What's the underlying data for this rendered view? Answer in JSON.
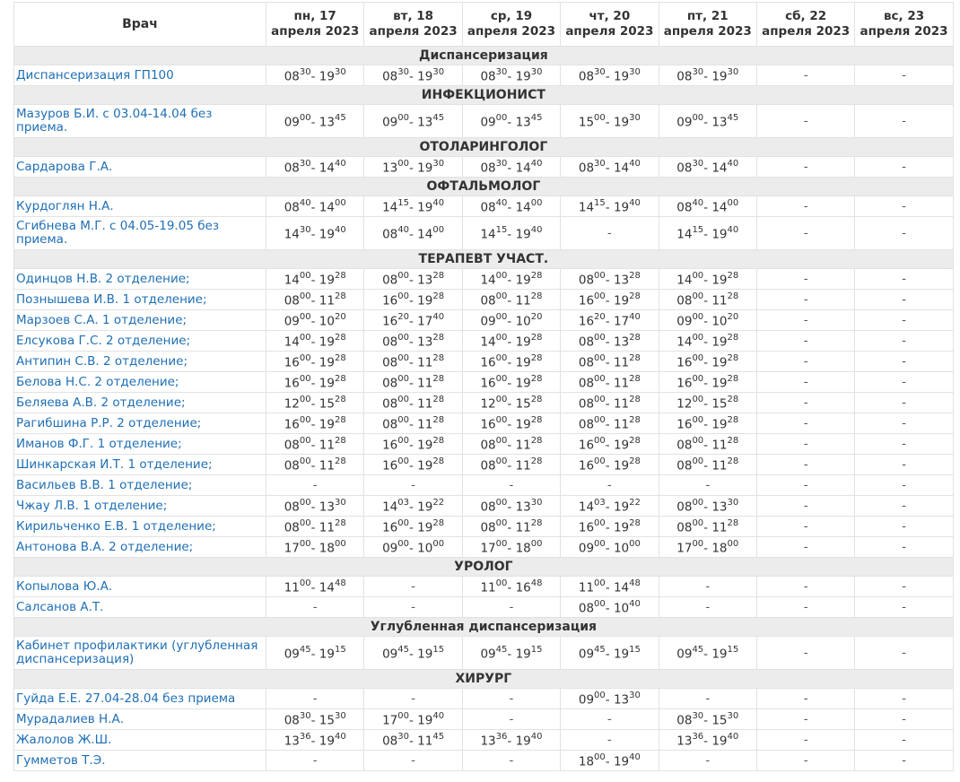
{
  "header": {
    "doctor": "Врач",
    "days": [
      {
        "l1": "пн, 17",
        "l2": "апреля 2023"
      },
      {
        "l1": "вт, 18",
        "l2": "апреля 2023"
      },
      {
        "l1": "ср, 19",
        "l2": "апреля 2023"
      },
      {
        "l1": "чт, 20",
        "l2": "апреля 2023"
      },
      {
        "l1": "пт, 21",
        "l2": "апреля 2023"
      },
      {
        "l1": "сб, 22",
        "l2": "апреля 2023"
      },
      {
        "l1": "вс, 23",
        "l2": "апреля 2023"
      }
    ]
  },
  "sections": [
    {
      "title": "Диспансеризация",
      "rows": [
        {
          "name": "Диспансеризация ГП100",
          "slots": [
            "08:30-19:30",
            "08:30-19:30",
            "08:30-19:30",
            "08:30-19:30",
            "08:30-19:30",
            "-",
            "-"
          ]
        }
      ]
    },
    {
      "title": "ИНФЕКЦИОНИСТ",
      "rows": [
        {
          "name": "Мазуров Б.И. с 03.04-14.04 без приема.",
          "tall": true,
          "slots": [
            "09:00-13:45",
            "09:00-13:45",
            "09:00-13:45",
            "15:00-19:30",
            "09:00-13:45",
            "-",
            "-"
          ]
        }
      ]
    },
    {
      "title": "ОТОЛАРИНГОЛОГ",
      "rows": [
        {
          "name": "Сардарова Г.А.",
          "slots": [
            "08:30-14:40",
            "13:00-19:30",
            "08:30-14:40",
            "08:30-14:40",
            "08:30-14:40",
            "-",
            "-"
          ]
        }
      ]
    },
    {
      "title": "ОФТАЛЬМОЛОГ",
      "rows": [
        {
          "name": "Курдоглян Н.А.",
          "slots": [
            "08:40-14:00",
            "14:15-19:40",
            "08:40-14:00",
            "14:15-19:40",
            "08:40-14:00",
            "-",
            "-"
          ]
        },
        {
          "name": "Сгибнева М.Г. с 04.05-19.05 без приема.",
          "tall": true,
          "slots": [
            "14:30-19:40",
            "08:40-14:00",
            "14:15-19:40",
            "-",
            "14:15-19:40",
            "-",
            "-"
          ]
        }
      ]
    },
    {
      "title": "ТЕРАПЕВТ УЧАСТ.",
      "rows": [
        {
          "name": "Одинцов Н.В. 2 отделение;",
          "slots": [
            "14:00-19:28",
            "08:00-13:28",
            "14:00-19:28",
            "08:00-13:28",
            "14:00-19:28",
            "-",
            "-"
          ]
        },
        {
          "name": "Познышева И.В. 1 отделение;",
          "slots": [
            "08:00-11:28",
            "16:00-19:28",
            "08:00-11:28",
            "16:00-19:28",
            "08:00-11:28",
            "-",
            "-"
          ]
        },
        {
          "name": "Марзоев С.А. 1 отделение;",
          "slots": [
            "09:00-10:20",
            "16:20-17:40",
            "09:00-10:20",
            "16:20-17:40",
            "09:00-10:20",
            "-",
            "-"
          ]
        },
        {
          "name": "Елсукова Г.С. 2 отделение;",
          "slots": [
            "14:00-19:28",
            "08:00-13:28",
            "14:00-19:28",
            "08:00-13:28",
            "14:00-19:28",
            "-",
            "-"
          ]
        },
        {
          "name": "Антипин С.В. 2 отделение;",
          "slots": [
            "16:00-19:28",
            "08:00-11:28",
            "16:00-19:28",
            "08:00-11:28",
            "16:00-19:28",
            "-",
            "-"
          ]
        },
        {
          "name": "Белова Н.С. 2 отделение;",
          "slots": [
            "16:00-19:28",
            "08:00-11:28",
            "16:00-19:28",
            "08:00-11:28",
            "16:00-19:28",
            "-",
            "-"
          ]
        },
        {
          "name": "Беляева А.В. 2 отделение;",
          "slots": [
            "12:00-15:28",
            "08:00-11:28",
            "12:00-15:28",
            "08:00-11:28",
            "12:00-15:28",
            "-",
            "-"
          ]
        },
        {
          "name": "Рагибшина Р.Р. 2 отделение;",
          "slots": [
            "16:00-19:28",
            "08:00-11:28",
            "16:00-19:28",
            "08:00-11:28",
            "16:00-19:28",
            "-",
            "-"
          ]
        },
        {
          "name": "Иманов Ф.Г. 1 отделение;",
          "slots": [
            "08:00-11:28",
            "16:00-19:28",
            "08:00-11:28",
            "16:00-19:28",
            "08:00-11:28",
            "-",
            "-"
          ]
        },
        {
          "name": "Шинкарская И.Т. 1 отделение;",
          "slots": [
            "08:00-11:28",
            "16:00-19:28",
            "08:00-11:28",
            "16:00-19:28",
            "08:00-11:28",
            "-",
            "-"
          ]
        },
        {
          "name": "Васильев В.В. 1 отделение;",
          "short": true,
          "slots": [
            "-",
            "-",
            "-",
            "-",
            "-",
            "-",
            "-"
          ]
        },
        {
          "name": "Чжау Л.В. 1 отделение;",
          "slots": [
            "08:00-13:30",
            "14:03-19:22",
            "08:00-13:30",
            "14:03-19:22",
            "08:00-13:30",
            "-",
            "-"
          ]
        },
        {
          "name": "Кирильченко Е.В. 1 отделение;",
          "slots": [
            "08:00-11:28",
            "16:00-19:28",
            "08:00-11:28",
            "16:00-19:28",
            "08:00-11:28",
            "-",
            "-"
          ]
        },
        {
          "name": "Антонова В.А. 2 отделение;",
          "slots": [
            "17:00-18:00",
            "09:00-10:00",
            "17:00-18:00",
            "09:00-10:00",
            "17:00-18:00",
            "-",
            "-"
          ]
        }
      ]
    },
    {
      "title": "УРОЛОГ",
      "rows": [
        {
          "name": "Копылова Ю.А.",
          "slots": [
            "11:00-14:48",
            "-",
            "11:00-16:48",
            "11:00-14:48",
            "-",
            "-",
            "-"
          ]
        },
        {
          "name": "Салсанов А.Т.",
          "slots": [
            "-",
            "-",
            "-",
            "08:00-10:40",
            "-",
            "-",
            "-"
          ]
        }
      ]
    },
    {
      "title": "Углубленная диспансеризация",
      "rows": [
        {
          "name": "Кабинет профилактики (углубленная диспансеризация)",
          "tall": true,
          "slots": [
            "09:45-19:15",
            "09:45-19:15",
            "09:45-19:15",
            "09:45-19:15",
            "09:45-19:15",
            "-",
            "-"
          ]
        }
      ]
    },
    {
      "title": "ХИРУРГ",
      "rows": [
        {
          "name": "Гуйда Е.Е. 27.04-28.04 без приема",
          "slots": [
            "-",
            "-",
            "-",
            "09:00-13:30",
            "-",
            "-",
            "-"
          ]
        },
        {
          "name": "Мурадалиев Н.А.",
          "slots": [
            "08:30-15:30",
            "17:00-19:40",
            "-",
            "-",
            "08:30-15:30",
            "-",
            "-"
          ]
        },
        {
          "name": "Жалолов Ж.Ш.",
          "slots": [
            "13:36-19:40",
            "08:30-11:45",
            "13:36-19:40",
            "-",
            "13:36-19:40",
            "-",
            "-"
          ]
        },
        {
          "name": "Гумметов Т.Э.",
          "slots": [
            "-",
            "-",
            "-",
            "18:00-19:40",
            "-",
            "-",
            "-"
          ]
        }
      ]
    }
  ]
}
